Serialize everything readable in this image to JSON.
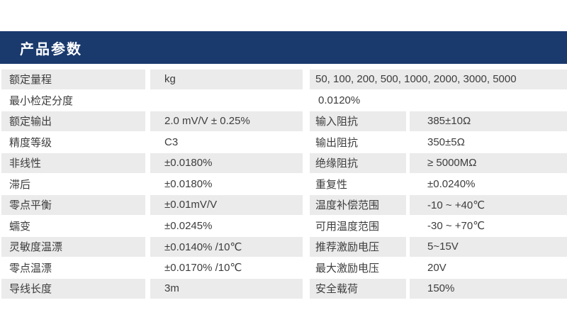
{
  "header": {
    "title": "产品参数"
  },
  "colors": {
    "header_bg": "#1a3a6e",
    "header_text": "#ffffff",
    "row_alt_bg": "#ebebeb",
    "row_bg": "#ffffff",
    "text": "#3d3d3d"
  },
  "left_table": {
    "rows": [
      {
        "label": "额定量程",
        "value": "kg"
      },
      {
        "label": "最小检定分度",
        "value": ""
      },
      {
        "label": "额定输出",
        "value": "2.0 mV/V ± 0.25%"
      },
      {
        "label": "精度等级",
        "value": "C3"
      },
      {
        "label": "非线性",
        "value": "±0.0180%"
      },
      {
        "label": "滞后",
        "value": "±0.0180%"
      },
      {
        "label": "零点平衡",
        "value": "±0.01mV/V"
      },
      {
        "label": "蠕变",
        "value": "±0.0245%"
      },
      {
        "label": "灵敏度温漂",
        "value": "±0.0140% /10℃"
      },
      {
        "label": "零点温漂",
        "value": "±0.0170% /10℃"
      },
      {
        "label": "导线长度",
        "value": "3m"
      }
    ]
  },
  "right_table": {
    "rows": [
      {
        "span": "50, 100, 200, 500, 1000, 2000, 3000, 5000"
      },
      {
        "span": "0.0120%"
      },
      {
        "label": "输入阻抗",
        "value": "385±10Ω"
      },
      {
        "label": "输出阻抗",
        "value": "350±5Ω"
      },
      {
        "label": "绝缘阻抗",
        "value": "≥ 5000MΩ"
      },
      {
        "label": "重复性",
        "value": "±0.0240%"
      },
      {
        "label": "温度补偿范围",
        "value": "-10 ~ +40℃"
      },
      {
        "label": "可用温度范围",
        "value": "-30 ~ +70℃"
      },
      {
        "label": "推荐激励电压",
        "value": "5~15V"
      },
      {
        "label": "最大激励电压",
        "value": "20V"
      },
      {
        "label": "安全载荷",
        "value": "150%"
      }
    ]
  }
}
